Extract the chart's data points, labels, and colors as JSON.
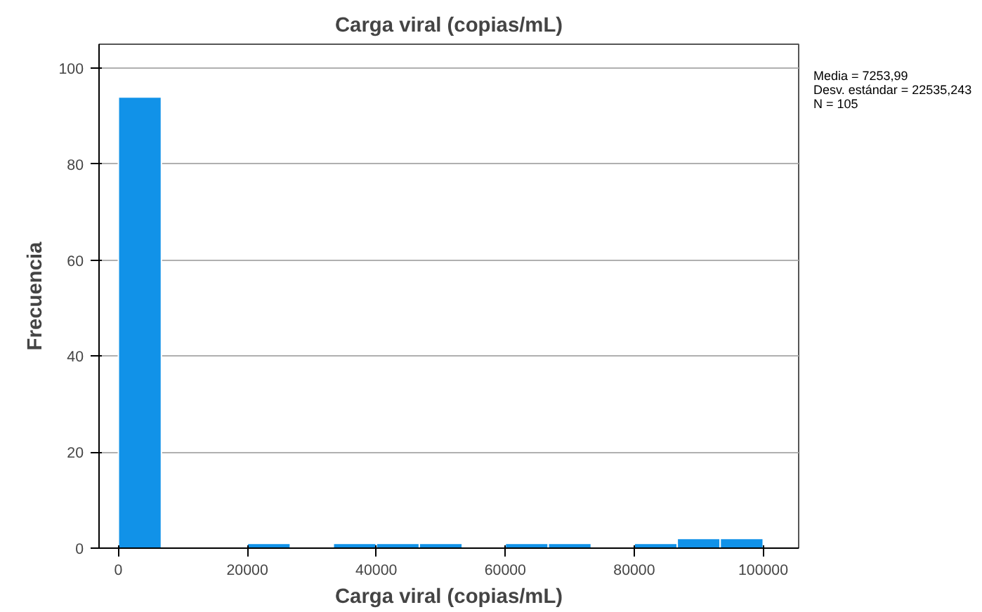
{
  "chart_data": {
    "type": "histogram",
    "title": "Carga viral (copias/mL)",
    "xlabel": "Carga viral (copias/mL)",
    "ylabel": "Frecuencia",
    "bins": [
      0,
      6667,
      13333,
      20000,
      26667,
      33333,
      40000,
      46667,
      53333,
      60000,
      66667,
      73333,
      80000,
      86667,
      93333,
      100000
    ],
    "values": [
      94,
      0,
      0,
      1,
      0,
      1,
      1,
      1,
      0,
      1,
      1,
      0,
      1,
      2,
      2
    ],
    "color": "#1192e8",
    "xlim": [
      -3000,
      105500
    ],
    "ylim": [
      0,
      105
    ],
    "xticks": [
      0,
      20000,
      40000,
      60000,
      80000,
      100000
    ],
    "yticks": [
      0,
      20,
      40,
      60,
      80,
      100
    ],
    "grid": "y",
    "annotations": [
      "Media = 7253,99",
      "Desv. estándar = 22535,243",
      "N = 105"
    ]
  }
}
